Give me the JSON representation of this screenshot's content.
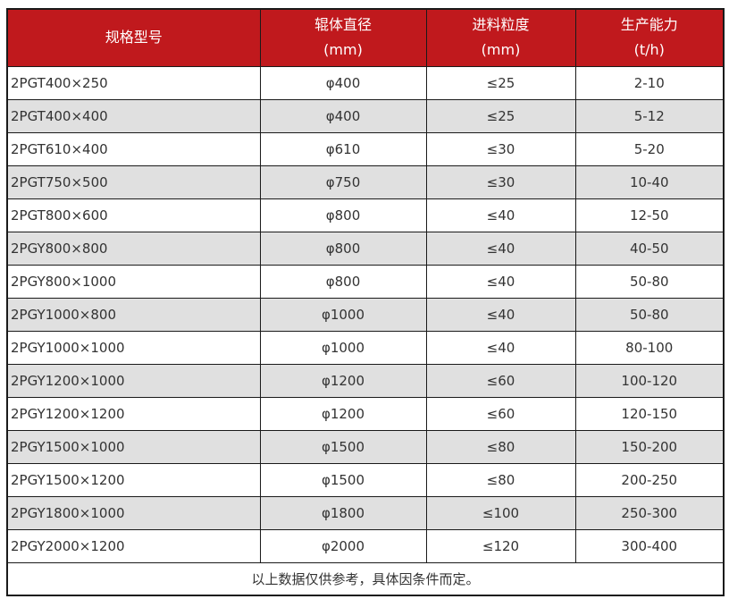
{
  "colors": {
    "header_bg": "#c0191d",
    "header_text": "#ffffff",
    "row_bg": "#ffffff",
    "row_alt_bg": "#e0e0e0",
    "border": "#1a1a1a",
    "text": "#333333"
  },
  "table": {
    "headers": [
      {
        "line1": "规格型号",
        "line2": ""
      },
      {
        "line1": "辊体直径",
        "line2": "(mm)"
      },
      {
        "line1": "进料粒度",
        "line2": "(mm)"
      },
      {
        "line1": "生产能力",
        "line2": "(t/h)"
      }
    ],
    "rows": [
      [
        "2PGT400×250",
        "φ400",
        "≤25",
        "2-10"
      ],
      [
        "2PGT400×400",
        "φ400",
        "≤25",
        "5-12"
      ],
      [
        "2PGT610×400",
        "φ610",
        "≤30",
        "5-20"
      ],
      [
        "2PGT750×500",
        "φ750",
        "≤30",
        "10-40"
      ],
      [
        "2PGT800×600",
        "φ800",
        "≤40",
        "12-50"
      ],
      [
        "2PGY800×800",
        "φ800",
        "≤40",
        "40-50"
      ],
      [
        "2PGY800×1000",
        "φ800",
        "≤40",
        "50-80"
      ],
      [
        "2PGY1000×800",
        "φ1000",
        "≤40",
        "50-80"
      ],
      [
        "2PGY1000×1000",
        "φ1000",
        "≤40",
        "80-100"
      ],
      [
        "2PGY1200×1000",
        "φ1200",
        "≤60",
        "100-120"
      ],
      [
        "2PGY1200×1200",
        "φ1200",
        "≤60",
        "120-150"
      ],
      [
        "2PGY1500×1000",
        "φ1500",
        "≤80",
        "150-200"
      ],
      [
        "2PGY1500×1200",
        "φ1500",
        "≤80",
        "200-250"
      ],
      [
        "2PGY1800×1000",
        "φ1800",
        "≤100",
        "250-300"
      ],
      [
        "2PGY2000×1200",
        "φ2000",
        "≤120",
        "300-400"
      ]
    ],
    "footer_note": "以上数据仅供参考，具体因条件而定。"
  }
}
